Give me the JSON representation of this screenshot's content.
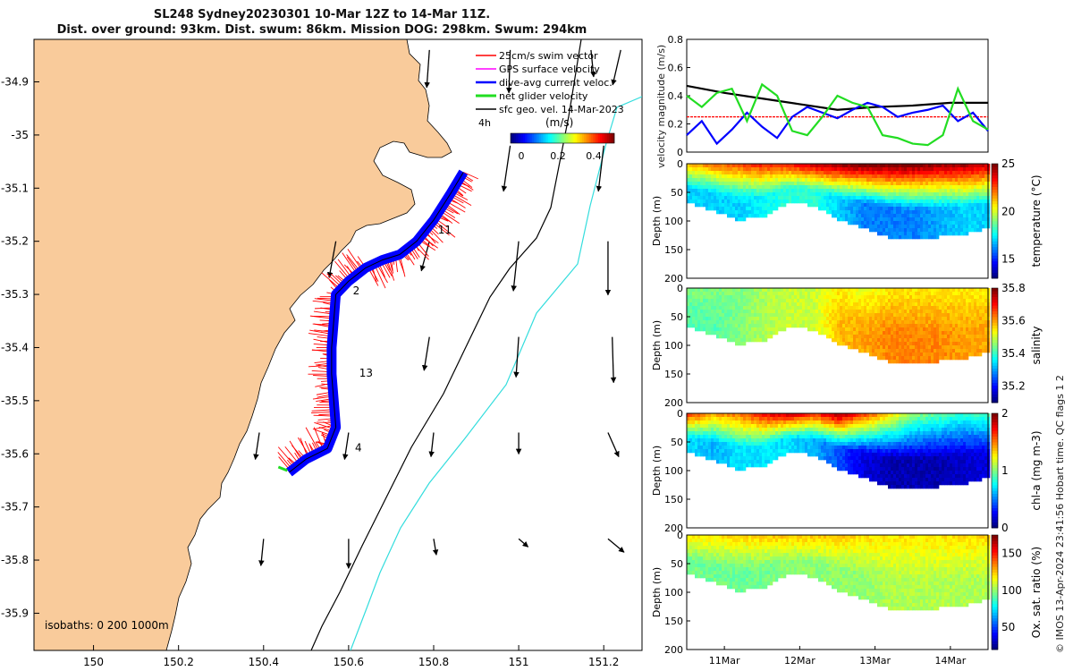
{
  "title": {
    "line1": "SL248 Sydney20230301 10-Mar 12Z to 14-Mar 11Z.",
    "line2": "Dist. over ground: 93km. Dist. swum: 86km. Mission DOG: 298km. Swum: 294km"
  },
  "colors": {
    "land": "#f9cb9b",
    "track": "#0000ff",
    "swim_vector": "#ff0000",
    "gps_surface": "#ff00ff",
    "net_glider": "#22dd22",
    "sfc_geo": "#000000",
    "isobath_200": "#000000",
    "isobath_1000": "#33dddd"
  },
  "chart_data": [
    {
      "type": "map",
      "x_ticks": [
        "150",
        "150.2",
        "150.4",
        "150.6",
        "150.8",
        "151",
        "151.2"
      ],
      "y_ticks": [
        "-34.9",
        "-35",
        "-35.1",
        "-35.2",
        "-35.3",
        "-35.4",
        "-35.5",
        "-35.6",
        "-35.7",
        "-35.8",
        "-35.9"
      ],
      "xlim": [
        149.86,
        151.29
      ],
      "ylim": [
        -35.97,
        -34.82
      ],
      "legend": {
        "placement": "top-right",
        "entries": [
          "25cm/s swim vector",
          "GPS surface velocity",
          "dive-avg current veloc.",
          "net glider velocity",
          "sfc geo. vel. 14-Mar-2023"
        ],
        "time_label": "4h"
      },
      "colorbar": {
        "label": "(m/s)",
        "ticks": [
          "0",
          "0.2",
          "0.4"
        ],
        "range": [
          -0.05,
          0.5
        ]
      },
      "day_labels": [
        {
          "text": "11",
          "lon": 150.81,
          "lat": -35.185
        },
        {
          "text": "2",
          "lon": 150.61,
          "lat": -35.3
        },
        {
          "text": "13",
          "lon": 150.625,
          "lat": -35.455
        },
        {
          "text": "4",
          "lon": 150.615,
          "lat": -35.595
        }
      ],
      "isobaths_label": "isobaths: 0   200  1000m",
      "track": [
        [
          150.87,
          -35.07
        ],
        [
          150.84,
          -35.11
        ],
        [
          150.8,
          -35.16
        ],
        [
          150.76,
          -35.2
        ],
        [
          150.72,
          -35.225
        ],
        [
          150.68,
          -35.235
        ],
        [
          150.64,
          -35.25
        ],
        [
          150.6,
          -35.275
        ],
        [
          150.57,
          -35.3
        ],
        [
          150.565,
          -35.35
        ],
        [
          150.56,
          -35.4
        ],
        [
          150.56,
          -35.45
        ],
        [
          150.565,
          -35.5
        ],
        [
          150.57,
          -35.55
        ],
        [
          150.55,
          -35.59
        ],
        [
          150.5,
          -35.61
        ],
        [
          150.46,
          -35.635
        ]
      ],
      "sfc_geo_vectors": [
        {
          "lon": 150.79,
          "lat": -34.84,
          "u": -0.02,
          "v": -0.28
        },
        {
          "lon": 150.98,
          "lat": -34.84,
          "u": -0.01,
          "v": -0.32
        },
        {
          "lon": 151.17,
          "lat": -34.84,
          "u": 0.02,
          "v": -0.2
        },
        {
          "lon": 151.24,
          "lat": -34.84,
          "u": -0.06,
          "v": -0.26
        },
        {
          "lon": 150.98,
          "lat": -35.02,
          "u": -0.05,
          "v": -0.34
        },
        {
          "lon": 151.2,
          "lat": -35.02,
          "u": -0.04,
          "v": -0.34
        },
        {
          "lon": 150.57,
          "lat": -35.2,
          "u": -0.05,
          "v": -0.27
        },
        {
          "lon": 150.79,
          "lat": -35.2,
          "u": -0.06,
          "v": -0.22
        },
        {
          "lon": 151.0,
          "lat": -35.2,
          "u": -0.04,
          "v": -0.37
        },
        {
          "lon": 151.21,
          "lat": -35.2,
          "u": 0.0,
          "v": -0.4
        },
        {
          "lon": 150.79,
          "lat": -35.38,
          "u": -0.04,
          "v": -0.25
        },
        {
          "lon": 151.0,
          "lat": -35.38,
          "u": -0.02,
          "v": -0.3
        },
        {
          "lon": 151.22,
          "lat": -35.38,
          "u": 0.01,
          "v": -0.34
        },
        {
          "lon": 150.39,
          "lat": -35.56,
          "u": -0.03,
          "v": -0.2
        },
        {
          "lon": 150.6,
          "lat": -35.56,
          "u": -0.03,
          "v": -0.2
        },
        {
          "lon": 150.8,
          "lat": -35.56,
          "u": -0.02,
          "v": -0.18
        },
        {
          "lon": 151.0,
          "lat": -35.56,
          "u": 0.0,
          "v": -0.16
        },
        {
          "lon": 151.21,
          "lat": -35.56,
          "u": 0.08,
          "v": -0.18
        },
        {
          "lon": 150.4,
          "lat": -35.76,
          "u": -0.02,
          "v": -0.2
        },
        {
          "lon": 150.6,
          "lat": -35.76,
          "u": 0.0,
          "v": -0.22
        },
        {
          "lon": 150.8,
          "lat": -35.76,
          "u": 0.02,
          "v": -0.12
        },
        {
          "lon": 151.0,
          "lat": -35.76,
          "u": 0.07,
          "v": -0.06
        },
        {
          "lon": 151.21,
          "lat": -35.76,
          "u": 0.12,
          "v": -0.1
        }
      ]
    },
    {
      "type": "line",
      "ylabel": "velocity magnitude (m/s)",
      "ylim": [
        0,
        0.8
      ],
      "y_ticks": [
        "0",
        "0.2",
        "0.4",
        "0.6",
        "0.8"
      ],
      "xlim": [
        0,
        4
      ],
      "series": [
        {
          "color": "#000000",
          "x": [
            0,
            0.5,
            1,
            1.5,
            2,
            2.5,
            3,
            3.5,
            4
          ],
          "values": [
            0.47,
            0.42,
            0.38,
            0.34,
            0.3,
            0.32,
            0.33,
            0.35,
            0.35
          ]
        },
        {
          "color": "#ff0000",
          "x": [
            0,
            4
          ],
          "values": [
            0.25,
            0.25
          ]
        },
        {
          "color": "#0000ff",
          "x": [
            0,
            0.2,
            0.4,
            0.6,
            0.8,
            1.0,
            1.2,
            1.4,
            1.6,
            1.8,
            2.0,
            2.2,
            2.4,
            2.6,
            2.8,
            3.0,
            3.2,
            3.4,
            3.6,
            3.8,
            4.0
          ],
          "values": [
            0.12,
            0.22,
            0.06,
            0.16,
            0.28,
            0.18,
            0.1,
            0.25,
            0.32,
            0.28,
            0.24,
            0.3,
            0.35,
            0.32,
            0.25,
            0.28,
            0.3,
            0.33,
            0.22,
            0.28,
            0.15
          ]
        },
        {
          "color": "#22dd22",
          "x": [
            0,
            0.2,
            0.4,
            0.6,
            0.8,
            1.0,
            1.2,
            1.4,
            1.6,
            1.8,
            2.0,
            2.2,
            2.4,
            2.6,
            2.8,
            3.0,
            3.2,
            3.4,
            3.6,
            3.8,
            4.0
          ],
          "values": [
            0.4,
            0.32,
            0.42,
            0.45,
            0.22,
            0.48,
            0.4,
            0.15,
            0.12,
            0.25,
            0.4,
            0.35,
            0.32,
            0.12,
            0.1,
            0.06,
            0.05,
            0.12,
            0.45,
            0.22,
            0.16
          ]
        }
      ]
    },
    {
      "type": "heatmap",
      "variable": "temperature",
      "colorbar_label": "temperature (°C)",
      "colorbar_ticks": [
        "15",
        "20",
        "25"
      ],
      "clim": [
        13,
        25
      ],
      "ylabel": "Depth (m)",
      "y_ticks": [
        "0",
        "50",
        "100",
        "150",
        "200"
      ],
      "ylim": [
        0,
        200
      ],
      "bottom_depth": [
        65,
        80,
        95,
        90,
        65,
        70,
        95,
        110,
        125,
        130,
        125,
        120,
        110
      ],
      "surface_values": [
        21,
        22,
        22.5,
        23,
        23,
        24,
        24.5,
        25,
        25,
        25,
        24.5,
        24.5,
        24
      ],
      "deep_values": [
        17,
        17,
        17,
        17.5,
        18,
        18,
        17,
        16,
        16,
        16,
        16.5,
        17,
        17
      ]
    },
    {
      "type": "heatmap",
      "variable": "salinity",
      "colorbar_label": "salinity",
      "colorbar_ticks": [
        "35.2",
        "35.4",
        "35.6",
        "35.8"
      ],
      "clim": [
        35.1,
        35.8
      ],
      "ylabel": "Depth (m)",
      "y_ticks": [
        "0",
        "50",
        "100",
        "150",
        "200"
      ],
      "ylim": [
        0,
        200
      ],
      "bottom_depth": [
        65,
        80,
        95,
        90,
        65,
        70,
        95,
        110,
        125,
        130,
        125,
        120,
        110
      ],
      "surface_values": [
        35.45,
        35.45,
        35.45,
        35.48,
        35.5,
        35.5,
        35.55,
        35.52,
        35.55,
        35.55,
        35.55,
        35.55,
        35.55
      ],
      "deep_values": [
        35.42,
        35.42,
        35.45,
        35.48,
        35.5,
        35.5,
        35.58,
        35.6,
        35.62,
        35.62,
        35.62,
        35.6,
        35.6
      ]
    },
    {
      "type": "heatmap",
      "variable": "chl-a",
      "colorbar_label": "chl-a (mg m-3)",
      "colorbar_ticks": [
        "0",
        "1",
        "2"
      ],
      "clim": [
        0,
        2
      ],
      "ylabel": "Depth (m)",
      "y_ticks": [
        "0",
        "50",
        "100",
        "150",
        "200"
      ],
      "ylim": [
        0,
        200
      ],
      "bottom_depth": [
        65,
        80,
        95,
        90,
        65,
        70,
        95,
        110,
        125,
        130,
        125,
        120,
        110
      ],
      "surface_values": [
        1.6,
        1.4,
        1.5,
        1.7,
        1.8,
        1.6,
        1.9,
        1.6,
        1.3,
        1.0,
        0.9,
        0.8,
        0.9
      ],
      "deep_values": [
        0.7,
        0.6,
        0.7,
        0.7,
        0.7,
        0.6,
        0.4,
        0.2,
        0.1,
        0.1,
        0.1,
        0.15,
        0.2
      ]
    },
    {
      "type": "heatmap",
      "variable": "oxygen saturation",
      "colorbar_label": "Ox. sat. ratio (%)",
      "colorbar_ticks": [
        "50",
        "100",
        "150"
      ],
      "clim": [
        20,
        175
      ],
      "ylabel": "Depth (m)",
      "y_ticks": [
        "0",
        "50",
        "100",
        "150",
        "200"
      ],
      "ylim": [
        0,
        200
      ],
      "bottom_depth": [
        65,
        80,
        95,
        90,
        65,
        70,
        95,
        110,
        125,
        130,
        125,
        120,
        110
      ],
      "surface_values": [
        120,
        120,
        122,
        125,
        125,
        125,
        125,
        122,
        120,
        120,
        120,
        122,
        122
      ],
      "deep_values": [
        95,
        95,
        95,
        95,
        100,
        100,
        100,
        100,
        105,
        105,
        105,
        105,
        105
      ]
    }
  ],
  "time_axis": {
    "labels": [
      "11Mar",
      "12Mar",
      "13Mar",
      "14Mar"
    ],
    "positions": [
      0.5,
      1.5,
      2.5,
      3.5
    ],
    "range": [
      0,
      4
    ]
  },
  "footer": "© IMOS 13-Apr-2024 23:41:56 Hobart time. QC flags 1  2"
}
